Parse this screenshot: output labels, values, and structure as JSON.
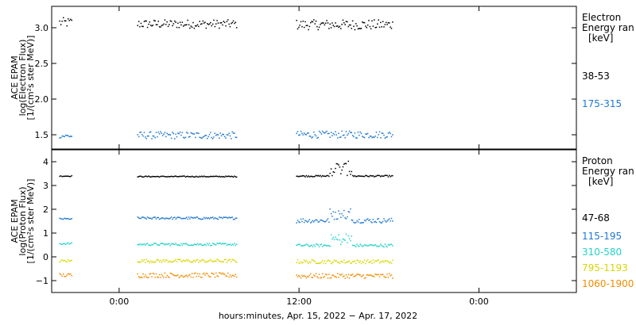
{
  "chart_data": [
    {
      "type": "scatter",
      "panel": "electron",
      "ylabel_lines": [
        "ACE EPAM",
        "log(Electron Flux)",
        "[1/(cm²s ster MeV)]"
      ],
      "yticks": [
        1.5,
        2.0,
        2.5,
        3.0
      ],
      "ytick_labels": [
        "1.5",
        "2.0",
        "2.5",
        "3.0"
      ],
      "ylim": [
        1.3,
        3.3
      ],
      "legend_title_lines": [
        "Electron",
        "Energy ran",
        "[keV]"
      ],
      "series": [
        {
          "name": "38-53",
          "color": "#000000",
          "segments": [
            {
              "x": [
                -4.0,
                -3.2
              ],
              "base": 3.08,
              "noise": 0.07
            },
            {
              "x": [
                1.2,
                7.8
              ],
              "base": 3.06,
              "noise": 0.06
            },
            {
              "x": [
                11.8,
                18.2
              ],
              "base": 3.05,
              "noise": 0.07
            }
          ]
        },
        {
          "name": "175-315",
          "color": "#1f78d1",
          "segments": [
            {
              "x": [
                -4.0,
                -3.2
              ],
              "base": 1.49,
              "noise": 0.03
            },
            {
              "x": [
                1.2,
                7.8
              ],
              "base": 1.5,
              "noise": 0.05
            },
            {
              "x": [
                11.8,
                18.2
              ],
              "base": 1.51,
              "noise": 0.05
            }
          ]
        }
      ]
    },
    {
      "type": "scatter",
      "panel": "proton",
      "ylabel_lines": [
        "ACE EPAM",
        "log(Proton Flux)",
        "[1/(cm²s ster MeV)]"
      ],
      "yticks": [
        -1,
        0,
        1,
        2,
        3,
        4
      ],
      "ytick_labels": [
        "−1",
        "0",
        "1",
        "2",
        "3",
        "4"
      ],
      "ylim": [
        -1.5,
        4.5
      ],
      "legend_title_lines": [
        "Proton",
        "Energy ran",
        "[keV]"
      ],
      "series": [
        {
          "name": "47-68",
          "color": "#000000",
          "segments": [
            {
              "x": [
                -4.0,
                -3.2
              ],
              "base": 3.42,
              "noise": 0.02
            },
            {
              "x": [
                1.2,
                7.8
              ],
              "base": 3.4,
              "noise": 0.02
            },
            {
              "x": [
                11.8,
                18.2
              ],
              "base": 3.42,
              "noise": 0.03
            }
          ]
        },
        {
          "name": "115-195",
          "color": "#1f78d1",
          "segments": [
            {
              "x": [
                -4.0,
                -3.2
              ],
              "base": 1.62,
              "noise": 0.03
            },
            {
              "x": [
                1.2,
                7.8
              ],
              "base": 1.65,
              "noise": 0.05
            },
            {
              "x": [
                11.8,
                18.2
              ],
              "base": 1.55,
              "noise": 0.1
            }
          ]
        },
        {
          "name": "310-580",
          "color": "#22d3c9",
          "segments": [
            {
              "x": [
                -4.0,
                -3.2
              ],
              "base": 0.58,
              "noise": 0.04
            },
            {
              "x": [
                1.2,
                7.8
              ],
              "base": 0.55,
              "noise": 0.05
            },
            {
              "x": [
                11.8,
                18.2
              ],
              "base": 0.5,
              "noise": 0.06
            }
          ]
        },
        {
          "name": "795-1193",
          "color": "#d7d700",
          "segments": [
            {
              "x": [
                -4.0,
                -3.2
              ],
              "base": -0.15,
              "noise": 0.06
            },
            {
              "x": [
                1.2,
                7.8
              ],
              "base": -0.15,
              "noise": 0.07
            },
            {
              "x": [
                11.8,
                18.2
              ],
              "base": -0.18,
              "noise": 0.08
            }
          ]
        },
        {
          "name": "1060-1900",
          "color": "#f08c00",
          "segments": [
            {
              "x": [
                -4.0,
                -3.2
              ],
              "base": -0.75,
              "noise": 0.08
            },
            {
              "x": [
                1.2,
                7.8
              ],
              "base": -0.75,
              "noise": 0.1
            },
            {
              "x": [
                11.8,
                18.2
              ],
              "base": -0.78,
              "noise": 0.1
            }
          ]
        }
      ]
    }
  ],
  "x_axis": {
    "xlim": [
      -4.5,
      30.5
    ],
    "ticks": [
      0,
      12,
      24
    ],
    "tick_labels": [
      "0:00",
      "12:00",
      "0:00"
    ],
    "label": "hours:minutes, Apr. 15, 2022 − Apr. 17, 2022"
  }
}
